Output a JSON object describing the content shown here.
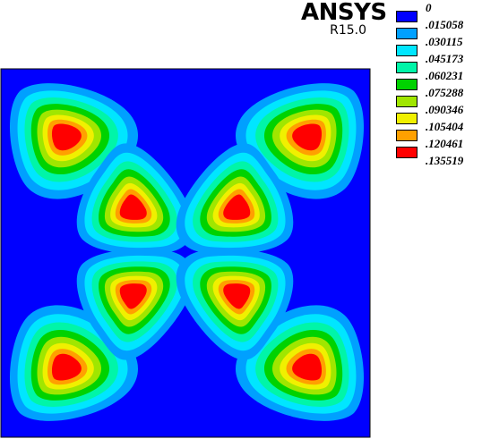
{
  "header": {
    "brand": "ANSYS",
    "release": "R15.0"
  },
  "legend": {
    "levels": [
      {
        "label": "0",
        "color": "#0000ff"
      },
      {
        "label": ".015058",
        "color": "#00a0ff"
      },
      {
        "label": ".030115",
        "color": "#00e6ff"
      },
      {
        "label": ".045173",
        "color": "#00f5a8"
      },
      {
        "label": ".060231",
        "color": "#00d200"
      },
      {
        "label": ".075288",
        "color": "#a0e600"
      },
      {
        "label": ".090346",
        "color": "#f0f000"
      },
      {
        "label": ".105404",
        "color": "#ffa000"
      },
      {
        "label": ".120461",
        "color": "#ff0000"
      },
      {
        "label": ".135519",
        "color": ""
      }
    ]
  },
  "plot": {
    "background_color": "#0000ff",
    "frame_color": "#000000"
  }
}
